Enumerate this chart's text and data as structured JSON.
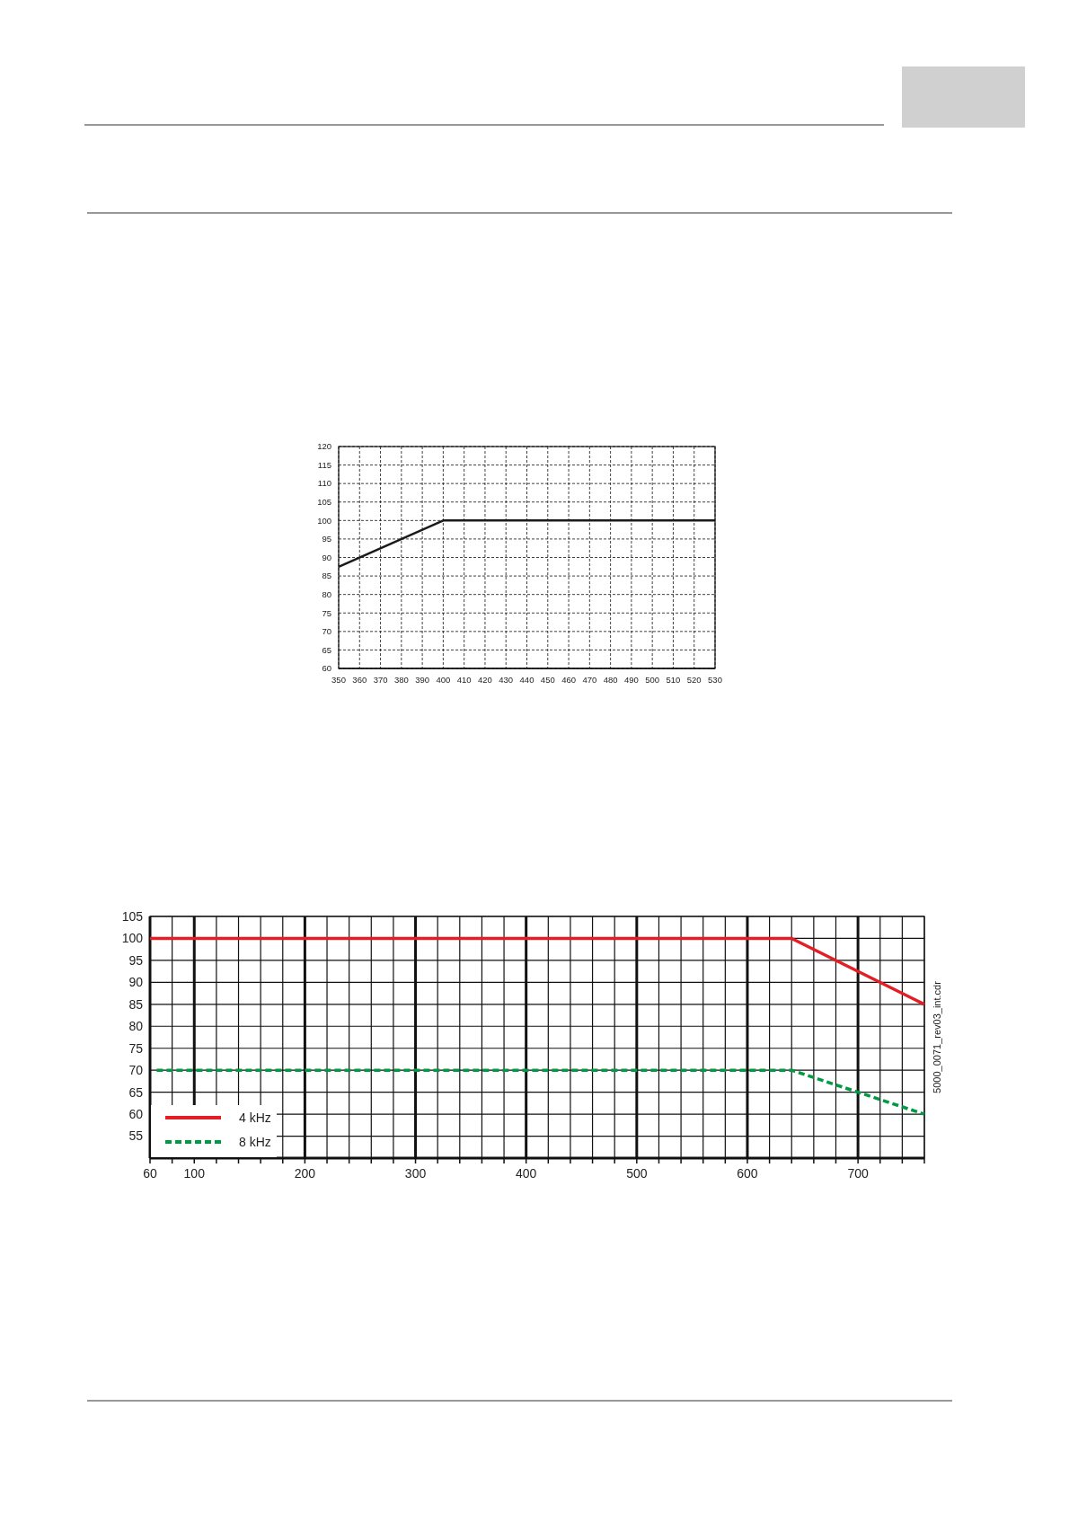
{
  "chart_data": [
    {
      "type": "line",
      "xlim": [
        350,
        530
      ],
      "ylim": [
        60,
        120
      ],
      "xticks": [
        350,
        360,
        370,
        380,
        390,
        400,
        410,
        420,
        430,
        440,
        450,
        460,
        470,
        480,
        490,
        500,
        510,
        520,
        530
      ],
      "yticks": [
        60,
        65,
        70,
        75,
        80,
        85,
        90,
        95,
        100,
        105,
        110,
        115,
        120
      ],
      "grid": true,
      "series": [
        {
          "color": "#1a1a1a",
          "x": [
            350,
            400,
            530
          ],
          "values": [
            87.5,
            100,
            100
          ]
        }
      ]
    },
    {
      "type": "line",
      "xlim": [
        60,
        760
      ],
      "ylim": [
        50,
        105
      ],
      "xticks": [
        60,
        {
          "value": 80,
          "label": null
        },
        100,
        {
          "value": 120,
          "label": null
        },
        {
          "value": 140,
          "label": null
        },
        {
          "value": 160,
          "label": null
        },
        {
          "value": 180,
          "label": null
        },
        200,
        {
          "value": 220,
          "label": null
        },
        {
          "value": 240,
          "label": null
        },
        {
          "value": 260,
          "label": null
        },
        {
          "value": 280,
          "label": null
        },
        300,
        {
          "value": 320,
          "label": null
        },
        {
          "value": 340,
          "label": null
        },
        {
          "value": 360,
          "label": null
        },
        {
          "value": 380,
          "label": null
        },
        400,
        {
          "value": 420,
          "label": null
        },
        {
          "value": 440,
          "label": null
        },
        {
          "value": 460,
          "label": null
        },
        {
          "value": 480,
          "label": null
        },
        500,
        {
          "value": 520,
          "label": null
        },
        {
          "value": 540,
          "label": null
        },
        {
          "value": 560,
          "label": null
        },
        {
          "value": 580,
          "label": null
        },
        600,
        {
          "value": 620,
          "label": null
        },
        {
          "value": 640,
          "label": null
        },
        {
          "value": 660,
          "label": null
        },
        {
          "value": 680,
          "label": null
        },
        700,
        {
          "value": 720,
          "label": null
        },
        {
          "value": 740,
          "label": null
        },
        {
          "value": 760,
          "label": null
        }
      ],
      "yticks": [
        55,
        60,
        65,
        70,
        75,
        80,
        85,
        90,
        95,
        100,
        105
      ],
      "grid": true,
      "legend": "bottom left",
      "annotations": [
        "5000_0071_rev03_int.cdr"
      ],
      "series": [
        {
          "name": "4 kHz",
          "color": "#e31e24",
          "line_style": "solid",
          "x": [
            60,
            640,
            760
          ],
          "values": [
            100,
            100,
            85
          ]
        },
        {
          "name": "8 kHz",
          "color": "#009a44",
          "line_style": "dashed",
          "x": [
            66,
            640,
            760
          ],
          "values": [
            70,
            70,
            60
          ]
        }
      ]
    }
  ]
}
